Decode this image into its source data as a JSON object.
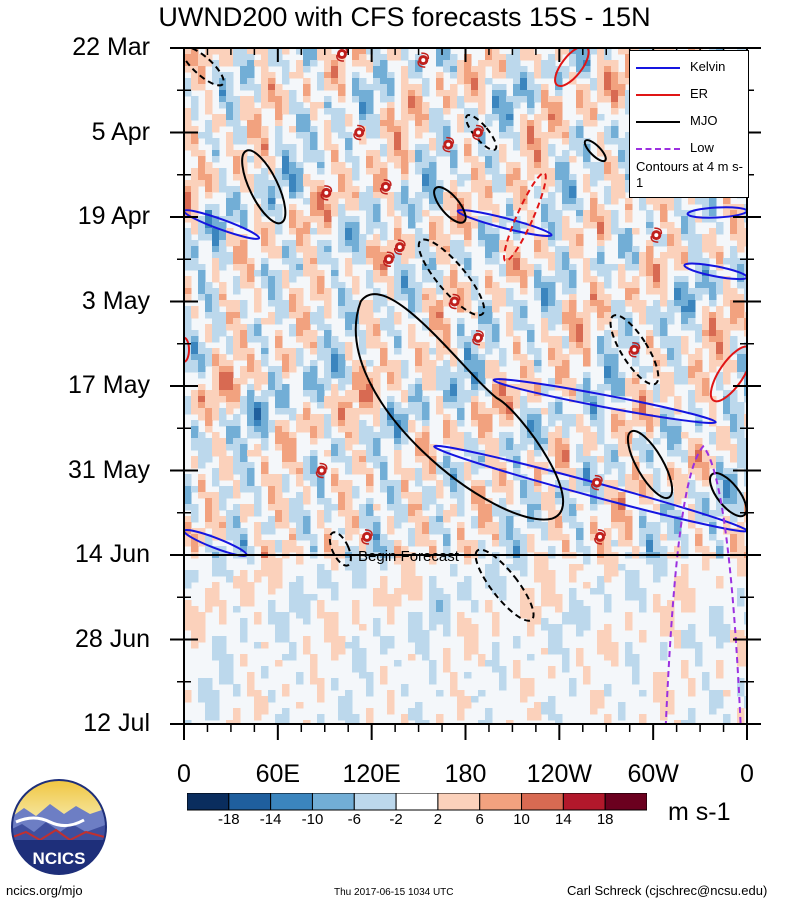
{
  "title": "UWND200 with CFS forecasts  15S - 15N",
  "chart_data": {
    "type": "heatmap",
    "title": "UWND200 with CFS forecasts  15S - 15N",
    "x_tick_labels": [
      "0",
      "60E",
      "120E",
      "180",
      "120W",
      "60W",
      "0"
    ],
    "x_tick_lons": [
      0,
      60,
      120,
      180,
      240,
      300,
      360
    ],
    "y_tick_labels": [
      "22 Mar",
      "5 Apr",
      "19 Apr",
      "3 May",
      "17 May",
      "31 May",
      "14 Jun",
      "28 Jun",
      "12 Jul"
    ],
    "y_tick_days": [
      0,
      14,
      28,
      42,
      56,
      70,
      84,
      98,
      112
    ],
    "xlim": [
      0,
      360
    ],
    "ylim_days": [
      0,
      112
    ],
    "forecast_start_day": 84,
    "forecast_label": "Begin Forecast",
    "colorbar": {
      "units": "m s-1",
      "labels": [
        "-18",
        "-14",
        "-10",
        "-6",
        "-2",
        "2",
        "6",
        "10",
        "14",
        "18"
      ],
      "levels": [
        -18,
        -14,
        -10,
        -6,
        -2,
        2,
        6,
        10,
        14,
        18
      ],
      "colors": [
        "#0a2d5e",
        "#1f5f9e",
        "#3b85be",
        "#72aed6",
        "#bcd8ec",
        "#ffffff",
        "#fbd1bb",
        "#f2a27f",
        "#d86a52",
        "#b2182b",
        "#6b001f"
      ]
    },
    "legend": {
      "placement": "top-right",
      "entries": [
        {
          "label": "Kelvin",
          "color": "#1515e0"
        },
        {
          "label": "ER",
          "color": "#e01515"
        },
        {
          "label": "MJO",
          "color": "#000000"
        },
        {
          "label": "Low",
          "color": "#9b30e0"
        }
      ],
      "note": "Contours at 4 m s-1"
    }
  },
  "footer": {
    "logo_text": "NCICS",
    "url": "ncics.org/mjo",
    "timestamp": "Thu 2017-06-15 1034 UTC",
    "author": "Carl Schreck (cjschrec@ncsu.edu)"
  }
}
